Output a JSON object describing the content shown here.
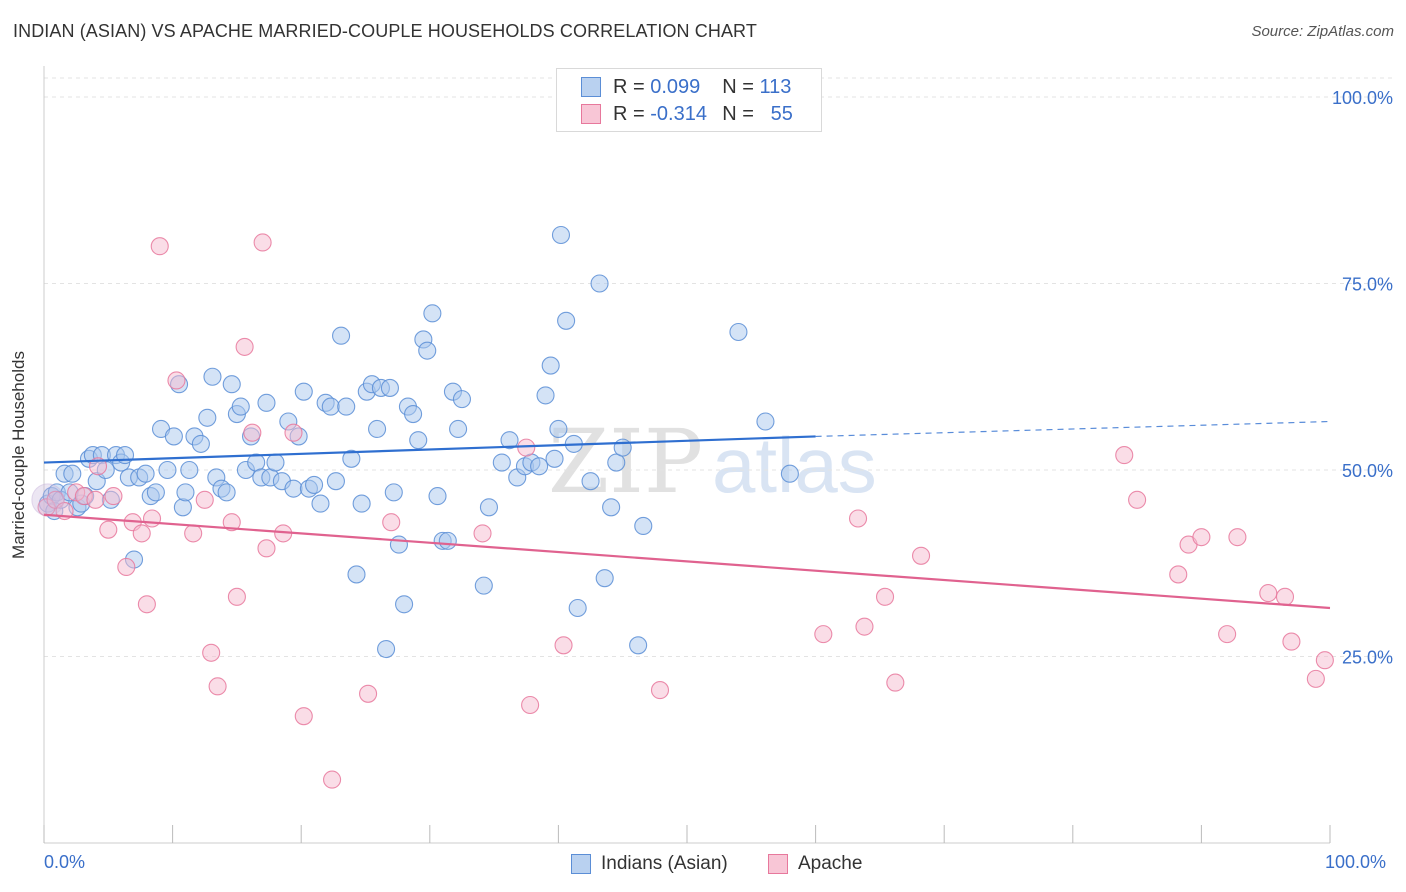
{
  "title": "INDIAN (ASIAN) VS APACHE MARRIED-COUPLE HOUSEHOLDS CORRELATION CHART",
  "source": "Source: ZipAtlas.com",
  "watermark": {
    "zip": "ZIP",
    "atlas": "atlas"
  },
  "legend_top": {
    "rows": [
      {
        "r_label": "R =",
        "r_value": "0.099",
        "n_label": "N =",
        "n_value": "113",
        "color": "#5b8ed6"
      },
      {
        "r_label": "R =",
        "r_value": "-0.314",
        "n_label": "N =",
        "n_value": "55",
        "color": "#e7789c"
      }
    ]
  },
  "legend_bottom": {
    "items": [
      {
        "label": "Indians (Asian)",
        "color": "#5b8ed6"
      },
      {
        "label": "Apache",
        "color": "#e7789c"
      }
    ]
  },
  "chart_data": {
    "type": "scatter",
    "title": "INDIAN (ASIAN) VS APACHE MARRIED-COUPLE HOUSEHOLDS CORRELATION CHART",
    "xlabel": "",
    "ylabel": "Married-couple Households",
    "xlim": [
      0,
      100
    ],
    "ylim": [
      0,
      100
    ],
    "x_tick_labels": [
      "0.0%",
      "100.0%"
    ],
    "y_tick_labels": [
      "25.0%",
      "50.0%",
      "75.0%",
      "100.0%"
    ],
    "y_ticks": [
      25,
      50,
      75,
      100
    ],
    "grid": true,
    "legend_position": "bottom",
    "colors": {
      "Indians (Asian)": "#5b8ed6",
      "Apache": "#e7789c"
    },
    "series": [
      {
        "name": "Indians (Asian)",
        "trend": {
          "x": [
            0,
            60
          ],
          "y": [
            51,
            54.5
          ],
          "dashed_to": [
            100,
            56.5
          ]
        },
        "points": [
          [
            0.3,
            45.5
          ],
          [
            0.6,
            46.5
          ],
          [
            0.8,
            44.5
          ],
          [
            1.0,
            47.0
          ],
          [
            1.3,
            46.0
          ],
          [
            1.6,
            49.5
          ],
          [
            2.0,
            47.0
          ],
          [
            2.2,
            49.5
          ],
          [
            2.6,
            45.0
          ],
          [
            2.9,
            45.5
          ],
          [
            3.2,
            46.5
          ],
          [
            3.5,
            51.5
          ],
          [
            3.8,
            52.0
          ],
          [
            4.1,
            48.5
          ],
          [
            4.5,
            52.0
          ],
          [
            4.8,
            50.0
          ],
          [
            5.2,
            46.0
          ],
          [
            5.6,
            52.0
          ],
          [
            6.0,
            51.0
          ],
          [
            6.3,
            52.0
          ],
          [
            6.6,
            49.0
          ],
          [
            7.0,
            38.0
          ],
          [
            7.4,
            49.0
          ],
          [
            7.9,
            49.5
          ],
          [
            8.3,
            46.5
          ],
          [
            8.7,
            47.0
          ],
          [
            9.1,
            55.5
          ],
          [
            9.6,
            50.0
          ],
          [
            10.1,
            54.5
          ],
          [
            10.5,
            61.5
          ],
          [
            10.8,
            45.0
          ],
          [
            11.3,
            50.0
          ],
          [
            11.0,
            47.0
          ],
          [
            11.7,
            54.5
          ],
          [
            12.2,
            53.5
          ],
          [
            12.7,
            57.0
          ],
          [
            13.1,
            62.5
          ],
          [
            13.4,
            49.0
          ],
          [
            13.8,
            47.5
          ],
          [
            14.2,
            47.0
          ],
          [
            14.6,
            61.5
          ],
          [
            15.0,
            57.5
          ],
          [
            15.3,
            58.5
          ],
          [
            15.7,
            50.0
          ],
          [
            16.1,
            54.5
          ],
          [
            16.5,
            51.0
          ],
          [
            16.9,
            49.0
          ],
          [
            17.3,
            59.0
          ],
          [
            17.6,
            49.0
          ],
          [
            18.0,
            51.0
          ],
          [
            18.5,
            48.5
          ],
          [
            19.0,
            56.5
          ],
          [
            19.4,
            47.5
          ],
          [
            19.8,
            54.5
          ],
          [
            20.2,
            60.5
          ],
          [
            20.6,
            47.5
          ],
          [
            21.0,
            48.0
          ],
          [
            21.5,
            45.5
          ],
          [
            21.9,
            59.0
          ],
          [
            22.3,
            58.5
          ],
          [
            22.7,
            48.5
          ],
          [
            23.1,
            68.0
          ],
          [
            23.5,
            58.5
          ],
          [
            23.9,
            51.5
          ],
          [
            24.3,
            36.0
          ],
          [
            24.7,
            45.5
          ],
          [
            25.1,
            60.5
          ],
          [
            25.5,
            61.5
          ],
          [
            25.9,
            55.5
          ],
          [
            26.2,
            61.0
          ],
          [
            26.6,
            26.0
          ],
          [
            26.9,
            61.0
          ],
          [
            27.2,
            47.0
          ],
          [
            27.6,
            40.0
          ],
          [
            28.0,
            32.0
          ],
          [
            28.3,
            58.5
          ],
          [
            28.7,
            57.5
          ],
          [
            29.1,
            54.0
          ],
          [
            29.5,
            67.5
          ],
          [
            29.8,
            66.0
          ],
          [
            30.2,
            71.0
          ],
          [
            30.6,
            46.5
          ],
          [
            31.0,
            40.5
          ],
          [
            31.4,
            40.5
          ],
          [
            31.8,
            60.5
          ],
          [
            32.2,
            55.5
          ],
          [
            32.5,
            59.5
          ],
          [
            34.2,
            34.5
          ],
          [
            34.6,
            45.0
          ],
          [
            35.6,
            51.0
          ],
          [
            36.2,
            54.0
          ],
          [
            36.8,
            49.0
          ],
          [
            37.4,
            50.5
          ],
          [
            37.9,
            51.0
          ],
          [
            38.5,
            50.5
          ],
          [
            39.0,
            60.0
          ],
          [
            39.4,
            64.0
          ],
          [
            39.7,
            51.5
          ],
          [
            40.2,
            81.5
          ],
          [
            40.6,
            70.0
          ],
          [
            40.0,
            55.5
          ],
          [
            41.2,
            53.5
          ],
          [
            41.5,
            31.5
          ],
          [
            42.5,
            48.5
          ],
          [
            43.2,
            75.0
          ],
          [
            43.6,
            35.5
          ],
          [
            44.1,
            45.0
          ],
          [
            44.5,
            51.0
          ],
          [
            45.0,
            53.0
          ],
          [
            46.2,
            26.5
          ],
          [
            46.6,
            42.5
          ],
          [
            54.0,
            68.5
          ],
          [
            56.1,
            56.5
          ],
          [
            58.0,
            49.5
          ]
        ]
      },
      {
        "name": "Apache",
        "trend": {
          "x": [
            0,
            100
          ],
          "y": [
            44,
            31.5
          ]
        },
        "points": [
          [
            0.2,
            45.0
          ],
          [
            0.9,
            46.0
          ],
          [
            1.6,
            44.5
          ],
          [
            2.5,
            47.0
          ],
          [
            3.1,
            46.5
          ],
          [
            4.2,
            50.5
          ],
          [
            5.0,
            42.0
          ],
          [
            5.4,
            46.5
          ],
          [
            6.4,
            37.0
          ],
          [
            6.9,
            43.0
          ],
          [
            7.6,
            41.5
          ],
          [
            8.0,
            32.0
          ],
          [
            8.4,
            43.5
          ],
          [
            9.0,
            80.0
          ],
          [
            10.3,
            62.0
          ],
          [
            11.6,
            41.5
          ],
          [
            12.5,
            46.0
          ],
          [
            13.0,
            25.5
          ],
          [
            13.5,
            21.0
          ],
          [
            14.6,
            43.0
          ],
          [
            15.0,
            33.0
          ],
          [
            15.6,
            66.5
          ],
          [
            16.2,
            55.0
          ],
          [
            17.0,
            80.5
          ],
          [
            17.3,
            39.5
          ],
          [
            18.6,
            41.5
          ],
          [
            19.4,
            55.0
          ],
          [
            20.2,
            17.0
          ],
          [
            22.4,
            8.5
          ],
          [
            25.2,
            20.0
          ],
          [
            27.0,
            43.0
          ],
          [
            34.1,
            41.5
          ],
          [
            37.5,
            53.0
          ],
          [
            37.8,
            18.5
          ],
          [
            40.4,
            26.5
          ],
          [
            47.9,
            20.5
          ],
          [
            60.6,
            28.0
          ],
          [
            63.3,
            43.5
          ],
          [
            63.8,
            29.0
          ],
          [
            65.4,
            33.0
          ],
          [
            66.2,
            21.5
          ],
          [
            68.2,
            38.5
          ],
          [
            84.0,
            52.0
          ],
          [
            85.0,
            46.0
          ],
          [
            88.2,
            36.0
          ],
          [
            89.0,
            40.0
          ],
          [
            90.0,
            41.0
          ],
          [
            92.0,
            28.0
          ],
          [
            92.8,
            41.0
          ],
          [
            95.2,
            33.5
          ],
          [
            96.5,
            33.0
          ],
          [
            97.0,
            27.0
          ],
          [
            98.9,
            22.0
          ],
          [
            99.6,
            24.5
          ],
          [
            4.0,
            46.0
          ]
        ]
      }
    ]
  }
}
